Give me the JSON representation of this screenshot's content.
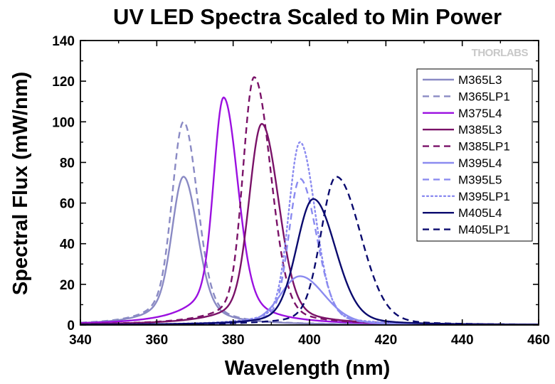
{
  "chart_data": {
    "type": "line",
    "title": "UV LED Spectra Scaled to Min Power",
    "xlabel": "Wavelength (nm)",
    "ylabel": "Spectral Flux (mW/nm)",
    "xlim": [
      340,
      460
    ],
    "ylim": [
      0,
      140
    ],
    "xticks": [
      "340",
      "360",
      "380",
      "400",
      "420",
      "440",
      "460"
    ],
    "yticks": [
      "0",
      "20",
      "40",
      "60",
      "80",
      "100",
      "120",
      "140"
    ],
    "grid": false,
    "legend_position": "top-right",
    "logo_text": "THORLABS",
    "series": [
      {
        "name": "M365L3",
        "color": "#8a8ac4",
        "dash": "solid",
        "peak_x": 367,
        "peak_y": 73,
        "w_left": 4.0,
        "w_right": 5.0,
        "tail": 0.3,
        "tail_w": 12
      },
      {
        "name": "M365LP1",
        "color": "#8a8ac4",
        "dash": "dashed",
        "peak_x": 367,
        "peak_y": 100,
        "w_left": 4.0,
        "w_right": 5.0,
        "tail": 0.25,
        "tail_w": 12
      },
      {
        "name": "M375L4",
        "color": "#9b10e0",
        "dash": "solid",
        "peak_x": 377.5,
        "peak_y": 112,
        "w_left": 3.5,
        "w_right": 5.0,
        "tail": 0.2,
        "tail_w": 16
      },
      {
        "name": "M385L3",
        "color": "#7a1268",
        "dash": "solid",
        "peak_x": 387.5,
        "peak_y": 99,
        "w_left": 4.5,
        "w_right": 6.0,
        "tail": 0.15,
        "tail_w": 18
      },
      {
        "name": "M385LP1",
        "color": "#7a1268",
        "dash": "dashed",
        "peak_x": 385.5,
        "peak_y": 122,
        "w_left": 4.0,
        "w_right": 6.0,
        "tail": 0.12,
        "tail_w": 18
      },
      {
        "name": "M395L4",
        "color": "#8b8bf0",
        "dash": "solid",
        "peak_x": 397.5,
        "peak_y": 24,
        "w_left": 7.0,
        "w_right": 9.0,
        "tail": 0.2,
        "tail_w": 18
      },
      {
        "name": "M395L5",
        "color": "#8b8bf0",
        "dash": "dashed",
        "peak_x": 397.5,
        "peak_y": 72,
        "w_left": 4.0,
        "w_right": 6.0,
        "tail": 0.12,
        "tail_w": 16
      },
      {
        "name": "M395LP1",
        "color": "#8b8bf0",
        "dash": "dotted",
        "peak_x": 397.5,
        "peak_y": 90,
        "w_left": 4.0,
        "w_right": 5.5,
        "tail": 0.12,
        "tail_w": 16
      },
      {
        "name": "M405L4",
        "color": "#0a0a6e",
        "dash": "solid",
        "peak_x": 401,
        "peak_y": 62,
        "w_left": 6.0,
        "w_right": 8.0,
        "tail": 0.15,
        "tail_w": 18
      },
      {
        "name": "M405LP1",
        "color": "#0a0a6e",
        "dash": "dashed",
        "peak_x": 407,
        "peak_y": 73,
        "w_left": 5.5,
        "w_right": 9.0,
        "tail": 0.12,
        "tail_w": 18
      }
    ]
  }
}
